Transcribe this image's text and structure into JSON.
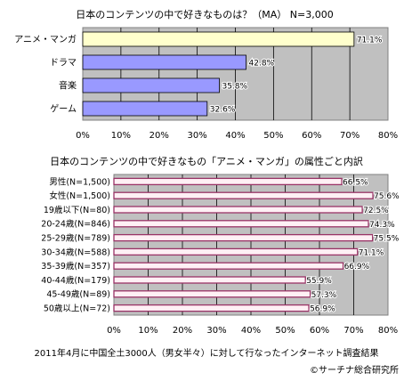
{
  "chart_data": [
    {
      "type": "bar",
      "orientation": "horizontal",
      "title": "日本のコンテンツの中で好きなものは？（MA） N=3,000",
      "categories": [
        "アニメ・マンガ",
        "ドラマ",
        "音楽",
        "ゲーム"
      ],
      "values": [
        71.1,
        42.8,
        35.8,
        32.6
      ],
      "value_labels": [
        "71.1%",
        "42.8%",
        "35.8%",
        "32.6%"
      ],
      "highlight_index": 0,
      "xlim": [
        0,
        80
      ],
      "x_ticks": [
        "0%",
        "10%",
        "20%",
        "30%",
        "40%",
        "50%",
        "60%",
        "70%",
        "80%"
      ],
      "grid": true,
      "colors": {
        "highlight": "#ffffcc",
        "bar": "#9999ff",
        "plot_bg": "#c0c0c0"
      }
    },
    {
      "type": "bar",
      "orientation": "horizontal",
      "title": "日本のコンテンツの中で好きなもの「アニメ・マンガ」の属性ごと内訳",
      "categories": [
        "男性(N=1,500)",
        "女性(N=1,500)",
        "19歳以下(N=80)",
        "20-24歳(N=846)",
        "25-29歳(N=789)",
        "30-34歳(N=588)",
        "35-39歳(N=357)",
        "40-44歳(N=179)",
        "45-49歳(N=89)",
        "50歳以上(N=72)"
      ],
      "values": [
        66.5,
        75.6,
        72.5,
        74.3,
        75.5,
        71.1,
        66.9,
        55.9,
        57.3,
        56.9
      ],
      "value_labels": [
        "66.5%",
        "75.6%",
        "72.5%",
        "74.3%",
        "75.5%",
        "71.1%",
        "66.9%",
        "55.9%",
        "57.3%",
        "56.9%"
      ],
      "xlim": [
        0,
        80
      ],
      "x_ticks": [
        "0%",
        "10%",
        "20%",
        "30%",
        "40%",
        "50%",
        "60%",
        "70%",
        "80%"
      ],
      "grid": true,
      "colors": {
        "bar": "#993366",
        "plot_bg": "#c0c0c0"
      }
    }
  ],
  "footer": {
    "note": "2011年4月に中国全土3000人（男女半々）に対して行なったインターネット調査結果",
    "credit": "©サーチナ総合研究所"
  }
}
